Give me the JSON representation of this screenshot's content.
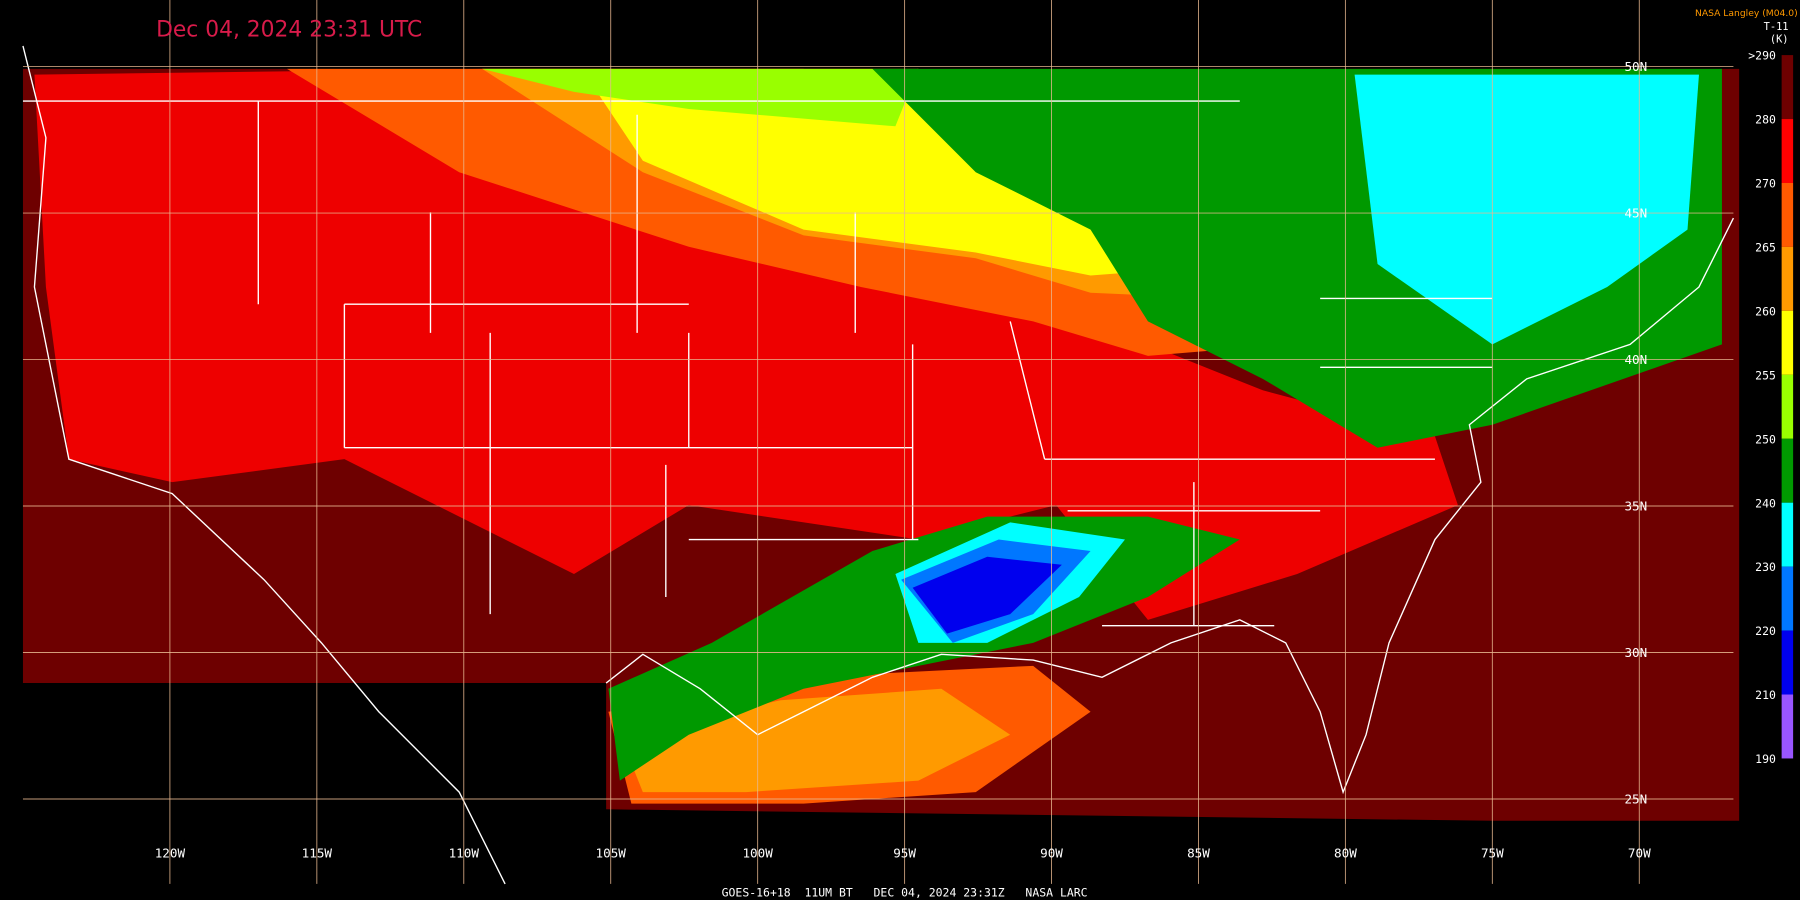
{
  "title": "Dec 04, 2024 23:31 UTC",
  "credit": "NASA Langley (M04.0)",
  "legend": {
    "title": "T-11",
    "unit": "(K)",
    "labels": [
      ">290",
      "280",
      "270",
      "265",
      "260",
      "255",
      "250",
      "240",
      "230",
      "220",
      "210",
      "190"
    ],
    "colors": [
      "#6e0000",
      "#ff0000",
      "#ff5a00",
      "#ff9a00",
      "#ffff00",
      "#99ff00",
      "#009900",
      "#00ffff",
      "#0077ff",
      "#0000ee",
      "#9955ff"
    ]
  },
  "lon_labels": [
    "120W",
    "115W",
    "110W",
    "105W",
    "100W",
    "95W",
    "90W",
    "85W",
    "80W",
    "75W",
    "70W"
  ],
  "lat_labels": [
    "50N",
    "45N",
    "40N",
    "35N",
    "30N",
    "25N"
  ],
  "footer": "GOES-16+18  11UM BT   DEC 04, 2024 23:31Z   NASA LARC"
}
